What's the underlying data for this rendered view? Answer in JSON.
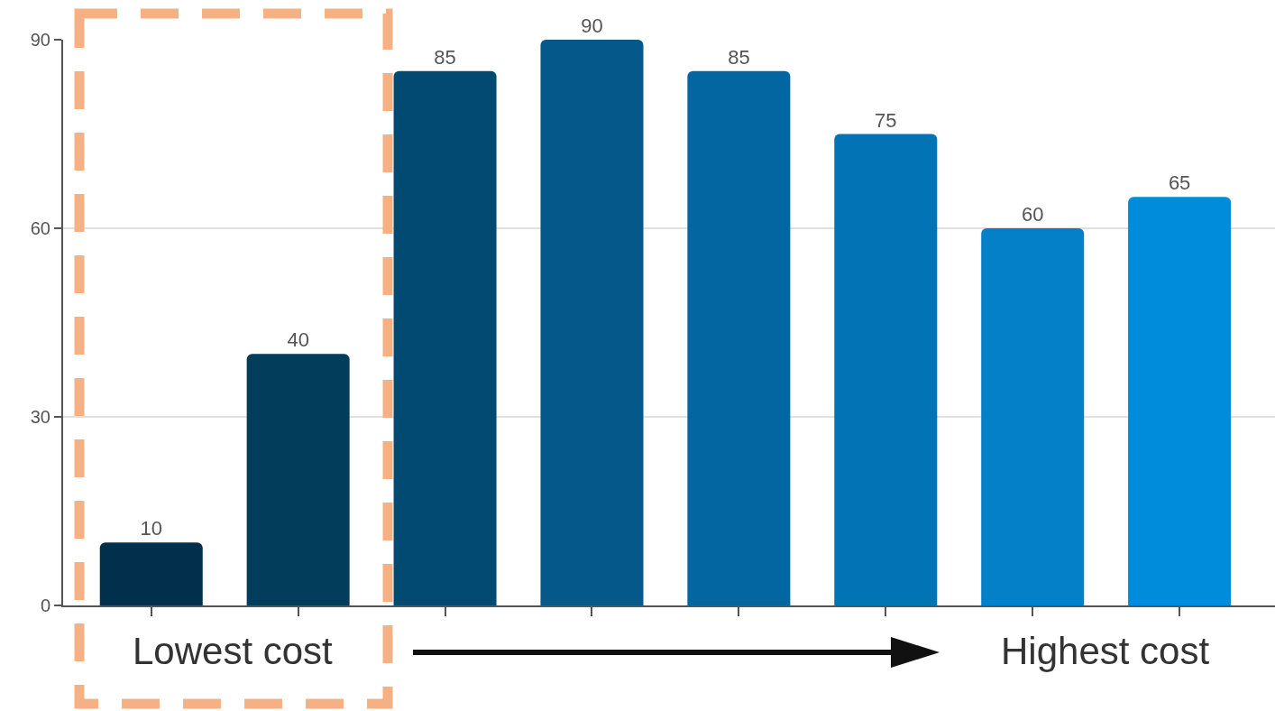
{
  "chart_data": {
    "type": "bar",
    "categories": [
      null,
      null,
      null,
      null,
      null,
      null,
      null,
      null
    ],
    "values": [
      10,
      40,
      85,
      90,
      85,
      75,
      60,
      65
    ],
    "colors": [
      "#012f4c",
      "#033d5c",
      "#034a72",
      "#04588a",
      "#0366a0",
      "#0274b5",
      "#0480c9",
      "#008cdb"
    ],
    "ylim": [
      0,
      90
    ],
    "yticks": [
      0,
      30,
      60,
      90
    ],
    "grid": "y",
    "data_labels": true,
    "annotations": [
      "Lowest cost",
      "Highest cost"
    ]
  }
}
